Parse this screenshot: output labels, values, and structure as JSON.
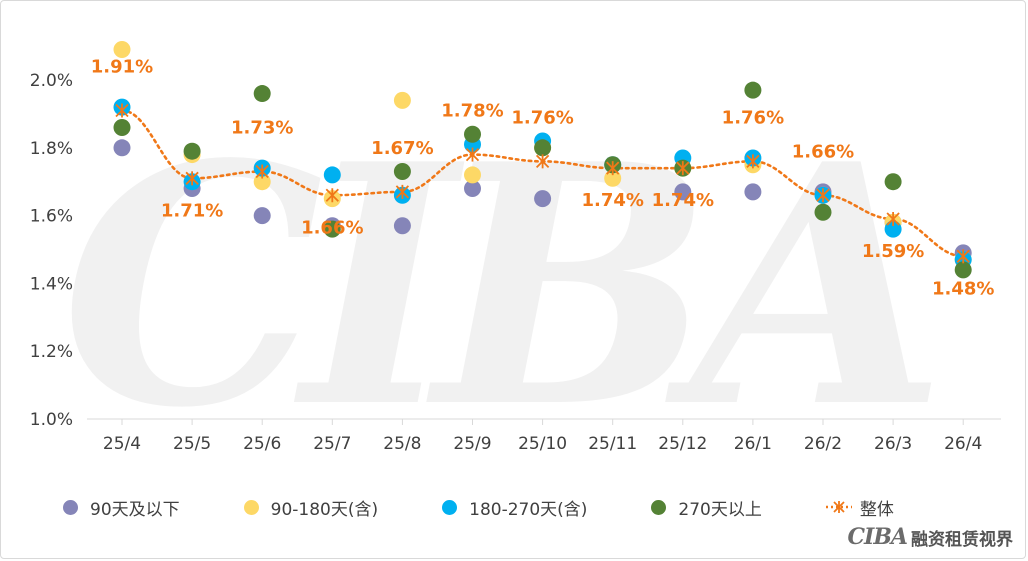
{
  "chart_data": {
    "type": "scatter",
    "categories": [
      "25/4",
      "25/5",
      "25/6",
      "25/7",
      "25/8",
      "25/9",
      "25/10",
      "25/11",
      "25/12",
      "26/1",
      "26/2",
      "26/3",
      "26/4"
    ],
    "ylim": [
      1.0,
      2.1
    ],
    "yticks": [
      "1.0%",
      "1.2%",
      "1.4%",
      "1.6%",
      "1.8%",
      "2.0%"
    ],
    "ytick_values": [
      1.0,
      1.2,
      1.4,
      1.6,
      1.8,
      2.0
    ],
    "grid": false,
    "legend_position": "bottom",
    "series": [
      {
        "name": "90天及以下",
        "color": "#8585b8",
        "values": [
          1.8,
          1.68,
          1.6,
          1.57,
          1.57,
          1.68,
          1.65,
          null,
          1.67,
          1.67,
          1.67,
          1.58,
          1.49
        ]
      },
      {
        "name": "90-180天(含)",
        "color": "#fdd866",
        "values": [
          2.09,
          1.78,
          1.7,
          1.65,
          1.94,
          1.72,
          1.8,
          1.71,
          1.74,
          1.75,
          1.66,
          1.58,
          1.47
        ]
      },
      {
        "name": "180-270天(含)",
        "color": "#00b0f0",
        "values": [
          1.92,
          1.7,
          1.74,
          1.72,
          1.66,
          1.81,
          1.82,
          1.75,
          1.77,
          1.77,
          1.66,
          1.56,
          1.47
        ]
      },
      {
        "name": "270天以上",
        "color": "#548235",
        "values": [
          1.86,
          1.79,
          1.96,
          1.56,
          1.73,
          1.84,
          1.8,
          1.75,
          1.74,
          1.97,
          1.61,
          1.7,
          1.44
        ]
      },
      {
        "name": "整体",
        "color": "#f07818",
        "style": "dotted-line-star",
        "values": [
          1.91,
          1.71,
          1.73,
          1.66,
          1.67,
          1.78,
          1.76,
          1.74,
          1.74,
          1.76,
          1.66,
          1.59,
          1.48
        ]
      }
    ],
    "data_labels": [
      "1.91%",
      "1.71%",
      "1.73%",
      "1.66%",
      "1.67%",
      "1.78%",
      "1.76%",
      "1.74%",
      "1.74%",
      "1.76%",
      "1.66%",
      "1.59%",
      "1.48%"
    ],
    "data_label_placement": [
      "above",
      "below",
      "above",
      "below",
      "above",
      "above",
      "above",
      "below",
      "below",
      "above",
      "above",
      "below",
      "below"
    ]
  },
  "legend": {
    "s1": "90天及以下",
    "s2": "90-180天(含)",
    "s3": "180-270天(含)",
    "s4": "270天以上",
    "s5": "整体"
  },
  "watermark_text": "CIBA",
  "brand": {
    "logo": "CIBA",
    "name": "融资租赁视界"
  }
}
